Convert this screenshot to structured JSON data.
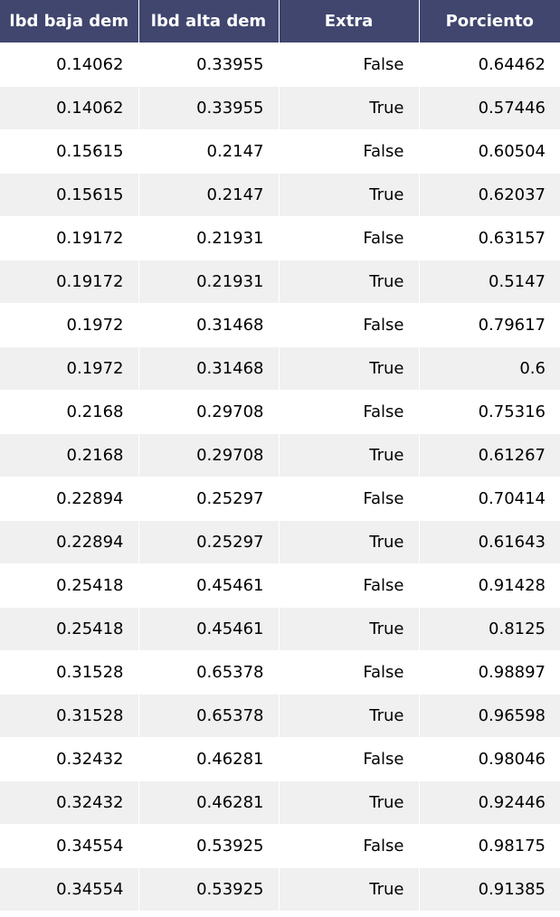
{
  "chart_data": {
    "type": "table",
    "columns": [
      "lbd baja dem",
      "lbd alta dem",
      "Extra",
      "Porciento"
    ],
    "rows": [
      [
        "0.14062",
        "0.33955",
        "False",
        "0.64462"
      ],
      [
        "0.14062",
        "0.33955",
        "True",
        "0.57446"
      ],
      [
        "0.15615",
        "0.2147",
        "False",
        "0.60504"
      ],
      [
        "0.15615",
        "0.2147",
        "True",
        "0.62037"
      ],
      [
        "0.19172",
        "0.21931",
        "False",
        "0.63157"
      ],
      [
        "0.19172",
        "0.21931",
        "True",
        "0.5147"
      ],
      [
        "0.1972",
        "0.31468",
        "False",
        "0.79617"
      ],
      [
        "0.1972",
        "0.31468",
        "True",
        "0.6"
      ],
      [
        "0.2168",
        "0.29708",
        "False",
        "0.75316"
      ],
      [
        "0.2168",
        "0.29708",
        "True",
        "0.61267"
      ],
      [
        "0.22894",
        "0.25297",
        "False",
        "0.70414"
      ],
      [
        "0.22894",
        "0.25297",
        "True",
        "0.61643"
      ],
      [
        "0.25418",
        "0.45461",
        "False",
        "0.91428"
      ],
      [
        "0.25418",
        "0.45461",
        "True",
        "0.8125"
      ],
      [
        "0.31528",
        "0.65378",
        "False",
        "0.98897"
      ],
      [
        "0.31528",
        "0.65378",
        "True",
        "0.96598"
      ],
      [
        "0.32432",
        "0.46281",
        "False",
        "0.98046"
      ],
      [
        "0.32432",
        "0.46281",
        "True",
        "0.92446"
      ],
      [
        "0.34554",
        "0.53925",
        "False",
        "0.98175"
      ],
      [
        "0.34554",
        "0.53925",
        "True",
        "0.91385"
      ]
    ]
  },
  "colors": {
    "header_bg": "#40466e",
    "header_text": "#ffffff",
    "row_alt_bg": "#f0f0f0",
    "row_bg": "#ffffff"
  }
}
